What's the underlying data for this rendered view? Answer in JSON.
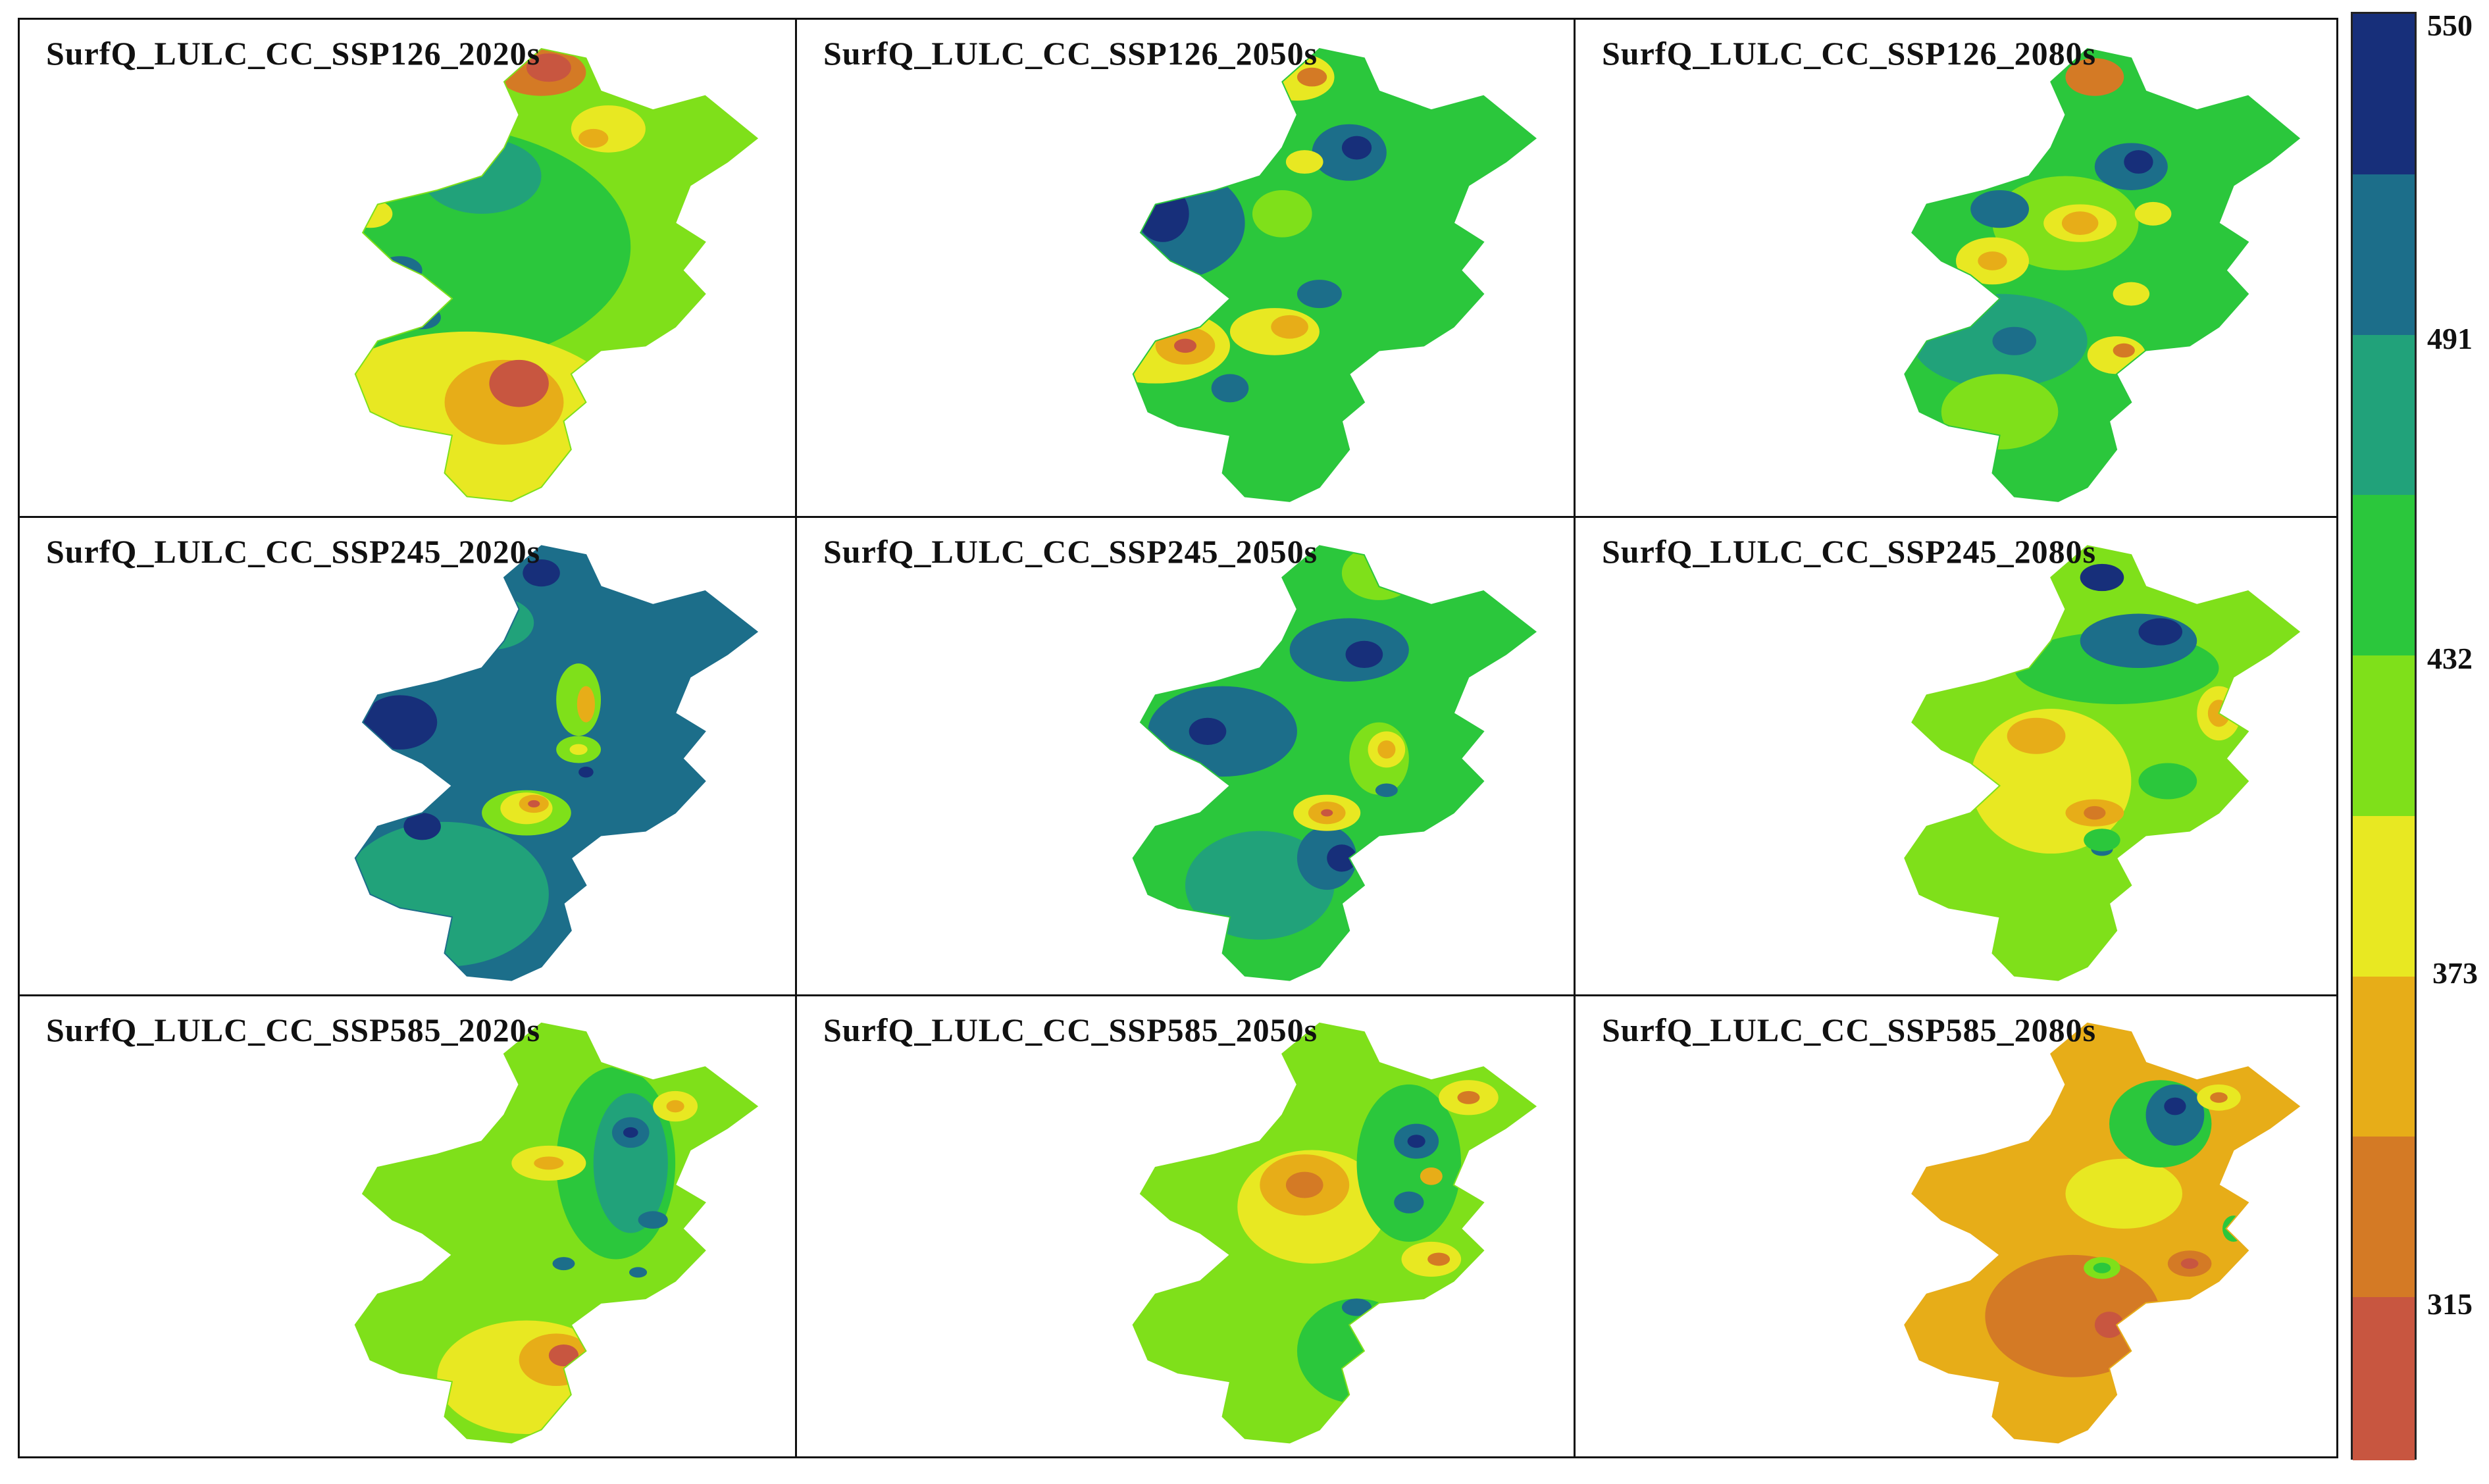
{
  "panels": [
    {
      "title": "SurfQ_LULC_CC_SSP126_2020s",
      "base": "#7fe01a",
      "zones": [
        [
          "#2bc73c",
          0.52,
          0.45,
          0.28,
          0.26
        ],
        [
          "#21a27a",
          0.6,
          0.3,
          0.08,
          0.08
        ],
        [
          "#e8e822",
          0.58,
          0.83,
          0.22,
          0.2
        ],
        [
          "#e7ad18",
          0.63,
          0.78,
          0.08,
          0.09
        ],
        [
          "#c85640",
          0.65,
          0.74,
          0.04,
          0.05
        ],
        [
          "#d47a25",
          0.68,
          0.08,
          0.06,
          0.05
        ],
        [
          "#c85640",
          0.69,
          0.07,
          0.03,
          0.03
        ],
        [
          "#e8e822",
          0.77,
          0.2,
          0.05,
          0.05
        ],
        [
          "#e7ad18",
          0.75,
          0.22,
          0.02,
          0.02
        ],
        [
          "#1c6e8a",
          0.49,
          0.5,
          0.03,
          0.03
        ],
        [
          "#1c6e8a",
          0.52,
          0.6,
          0.025,
          0.025
        ],
        [
          "#e8e822",
          0.45,
          0.38,
          0.03,
          0.03
        ]
      ]
    },
    {
      "title": "SurfQ_LULC_CC_SSP126_2050s",
      "base": "#2bc73c",
      "zones": [
        [
          "#1c6e8a",
          0.48,
          0.4,
          0.1,
          0.12
        ],
        [
          "#172f7a",
          0.47,
          0.38,
          0.035,
          0.06
        ],
        [
          "#e8e822",
          0.46,
          0.66,
          0.1,
          0.08
        ],
        [
          "#e7ad18",
          0.5,
          0.66,
          0.04,
          0.04
        ],
        [
          "#c85640",
          0.5,
          0.66,
          0.015,
          0.015
        ],
        [
          "#e8e822",
          0.62,
          0.63,
          0.06,
          0.05
        ],
        [
          "#e7ad18",
          0.64,
          0.62,
          0.025,
          0.025
        ],
        [
          "#e8e822",
          0.65,
          0.09,
          0.05,
          0.05
        ],
        [
          "#d47a25",
          0.67,
          0.09,
          0.02,
          0.02
        ],
        [
          "#1c6e8a",
          0.72,
          0.25,
          0.05,
          0.06
        ],
        [
          "#172f7a",
          0.73,
          0.24,
          0.02,
          0.025
        ],
        [
          "#7fe01a",
          0.63,
          0.38,
          0.04,
          0.05
        ],
        [
          "#e8e822",
          0.66,
          0.27,
          0.025,
          0.025
        ],
        [
          "#1c6e8a",
          0.56,
          0.75,
          0.025,
          0.03
        ],
        [
          "#1c6e8a",
          0.68,
          0.55,
          0.03,
          0.03
        ]
      ]
    },
    {
      "title": "SurfQ_LULC_CC_SSP126_2080s",
      "base": "#2bc73c",
      "zones": [
        [
          "#21a27a",
          0.56,
          0.65,
          0.12,
          0.1
        ],
        [
          "#1c6e8a",
          0.58,
          0.65,
          0.03,
          0.03
        ],
        [
          "#7fe01a",
          0.65,
          0.4,
          0.1,
          0.1
        ],
        [
          "#e8e822",
          0.67,
          0.4,
          0.05,
          0.04
        ],
        [
          "#e7ad18",
          0.67,
          0.4,
          0.025,
          0.025
        ],
        [
          "#e8e822",
          0.55,
          0.48,
          0.05,
          0.05
        ],
        [
          "#e7ad18",
          0.55,
          0.48,
          0.02,
          0.02
        ],
        [
          "#d47a25",
          0.69,
          0.09,
          0.04,
          0.04
        ],
        [
          "#1c6e8a",
          0.74,
          0.28,
          0.05,
          0.05
        ],
        [
          "#172f7a",
          0.75,
          0.27,
          0.02,
          0.025
        ],
        [
          "#1c6e8a",
          0.56,
          0.37,
          0.04,
          0.04
        ],
        [
          "#e8e822",
          0.72,
          0.68,
          0.04,
          0.04
        ],
        [
          "#d47a25",
          0.73,
          0.67,
          0.015,
          0.015
        ],
        [
          "#e8e822",
          0.77,
          0.38,
          0.025,
          0.025
        ],
        [
          "#e8e822",
          0.74,
          0.55,
          0.025,
          0.025
        ],
        [
          "#7fe01a",
          0.56,
          0.8,
          0.08,
          0.08
        ]
      ]
    },
    {
      "title": "SurfQ_LULC_CC_SSP245_2020s",
      "base": "#1c6e8a",
      "zones": [
        [
          "#21a27a",
          0.55,
          0.8,
          0.14,
          0.16
        ],
        [
          "#21a27a",
          0.61,
          0.2,
          0.06,
          0.06
        ],
        [
          "#172f7a",
          0.49,
          0.42,
          0.05,
          0.06
        ],
        [
          "#172f7a",
          0.52,
          0.65,
          0.025,
          0.03
        ],
        [
          "#172f7a",
          0.68,
          0.09,
          0.025,
          0.03
        ],
        [
          "#7fe01a",
          0.66,
          0.62,
          0.06,
          0.05
        ],
        [
          "#e8e822",
          0.66,
          0.61,
          0.035,
          0.035
        ],
        [
          "#e7ad18",
          0.67,
          0.6,
          0.02,
          0.02
        ],
        [
          "#c85640",
          0.67,
          0.6,
          0.008,
          0.008
        ],
        [
          "#7fe01a",
          0.73,
          0.37,
          0.03,
          0.08
        ],
        [
          "#e7ad18",
          0.74,
          0.38,
          0.012,
          0.04
        ],
        [
          "#7fe01a",
          0.73,
          0.48,
          0.03,
          0.03
        ],
        [
          "#e8e822",
          0.73,
          0.48,
          0.012,
          0.012
        ],
        [
          "#172f7a",
          0.74,
          0.53,
          0.01,
          0.012
        ]
      ]
    },
    {
      "title": "SurfQ_LULC_CC_SSP245_2050s",
      "base": "#2bc73c",
      "zones": [
        [
          "#1c6e8a",
          0.55,
          0.44,
          0.1,
          0.1
        ],
        [
          "#172f7a",
          0.53,
          0.44,
          0.025,
          0.03
        ],
        [
          "#1c6e8a",
          0.72,
          0.26,
          0.08,
          0.07
        ],
        [
          "#172f7a",
          0.74,
          0.27,
          0.025,
          0.03
        ],
        [
          "#21a27a",
          0.6,
          0.78,
          0.1,
          0.12
        ],
        [
          "#1c6e8a",
          0.69,
          0.72,
          0.04,
          0.07
        ],
        [
          "#172f7a",
          0.71,
          0.72,
          0.02,
          0.03
        ],
        [
          "#e8e822",
          0.69,
          0.62,
          0.045,
          0.04
        ],
        [
          "#e7ad18",
          0.69,
          0.62,
          0.025,
          0.025
        ],
        [
          "#c85640",
          0.69,
          0.62,
          0.008,
          0.008
        ],
        [
          "#7fe01a",
          0.76,
          0.5,
          0.04,
          0.08
        ],
        [
          "#e8e822",
          0.77,
          0.48,
          0.025,
          0.04
        ],
        [
          "#e7ad18",
          0.77,
          0.48,
          0.012,
          0.02
        ],
        [
          "#7fe01a",
          0.76,
          0.09,
          0.05,
          0.06
        ],
        [
          "#1c6e8a",
          0.77,
          0.57,
          0.015,
          0.015
        ]
      ]
    },
    {
      "title": "SurfQ_LULC_CC_SSP245_2080s",
      "base": "#7fe01a",
      "zones": [
        [
          "#e8e822",
          0.63,
          0.55,
          0.11,
          0.16
        ],
        [
          "#e7ad18",
          0.61,
          0.45,
          0.04,
          0.04
        ],
        [
          "#e7ad18",
          0.69,
          0.62,
          0.04,
          0.03
        ],
        [
          "#d47a25",
          0.69,
          0.62,
          0.015,
          0.015
        ],
        [
          "#2bc73c",
          0.72,
          0.3,
          0.14,
          0.08
        ],
        [
          "#1c6e8a",
          0.75,
          0.24,
          0.08,
          0.06
        ],
        [
          "#172f7a",
          0.78,
          0.22,
          0.03,
          0.03
        ],
        [
          "#172f7a",
          0.7,
          0.1,
          0.03,
          0.03
        ],
        [
          "#e8e822",
          0.86,
          0.4,
          0.03,
          0.06
        ],
        [
          "#e7ad18",
          0.86,
          0.4,
          0.015,
          0.03
        ],
        [
          "#2bc73c",
          0.79,
          0.55,
          0.04,
          0.04
        ],
        [
          "#1c6e8a",
          0.7,
          0.7,
          0.015,
          0.015
        ],
        [
          "#2bc73c",
          0.7,
          0.68,
          0.025,
          0.025
        ]
      ]
    },
    {
      "title": "SurfQ_LULC_CC_SSP585_2020s",
      "base": "#7fe01a",
      "zones": [
        [
          "#2bc73c",
          0.78,
          0.35,
          0.08,
          0.22
        ],
        [
          "#21a27a",
          0.8,
          0.35,
          0.05,
          0.16
        ],
        [
          "#1c6e8a",
          0.8,
          0.28,
          0.025,
          0.035
        ],
        [
          "#1c6e8a",
          0.83,
          0.48,
          0.02,
          0.02
        ],
        [
          "#172f7a",
          0.8,
          0.28,
          0.01,
          0.012
        ],
        [
          "#e8e822",
          0.86,
          0.22,
          0.03,
          0.035
        ],
        [
          "#e7ad18",
          0.86,
          0.22,
          0.012,
          0.014
        ],
        [
          "#e8e822",
          0.69,
          0.35,
          0.05,
          0.04
        ],
        [
          "#e7ad18",
          0.69,
          0.35,
          0.02,
          0.015
        ],
        [
          "#e8e822",
          0.66,
          0.84,
          0.12,
          0.13
        ],
        [
          "#e7ad18",
          0.7,
          0.8,
          0.05,
          0.06
        ],
        [
          "#c85640",
          0.71,
          0.79,
          0.02,
          0.025
        ],
        [
          "#1c6e8a",
          0.71,
          0.58,
          0.015,
          0.015
        ],
        [
          "#1c6e8a",
          0.81,
          0.6,
          0.012,
          0.012
        ]
      ]
    },
    {
      "title": "SurfQ_LULC_CC_SSP585_2050s",
      "base": "#7fe01a",
      "zones": [
        [
          "#e8e822",
          0.67,
          0.45,
          0.1,
          0.13
        ],
        [
          "#e7ad18",
          0.66,
          0.4,
          0.06,
          0.07
        ],
        [
          "#d47a25",
          0.66,
          0.4,
          0.025,
          0.03
        ],
        [
          "#2bc73c",
          0.73,
          0.78,
          0.08,
          0.12
        ],
        [
          "#2bc73c",
          0.8,
          0.35,
          0.07,
          0.18
        ],
        [
          "#1c6e8a",
          0.81,
          0.3,
          0.03,
          0.04
        ],
        [
          "#172f7a",
          0.81,
          0.3,
          0.012,
          0.015
        ],
        [
          "#1c6e8a",
          0.8,
          0.44,
          0.02,
          0.025
        ],
        [
          "#e8e822",
          0.83,
          0.57,
          0.04,
          0.04
        ],
        [
          "#d47a25",
          0.84,
          0.57,
          0.015,
          0.015
        ],
        [
          "#e8e822",
          0.88,
          0.2,
          0.04,
          0.04
        ],
        [
          "#d47a25",
          0.88,
          0.2,
          0.015,
          0.015
        ],
        [
          "#1c6e8a",
          0.73,
          0.68,
          0.02,
          0.02
        ],
        [
          "#e7ad18",
          0.83,
          0.38,
          0.015,
          0.02
        ]
      ]
    },
    {
      "title": "SurfQ_LULC_CC_SSP585_2080s",
      "base": "#e7ad18",
      "zones": [
        [
          "#d47a25",
          0.66,
          0.7,
          0.12,
          0.14
        ],
        [
          "#c85640",
          0.71,
          0.72,
          0.02,
          0.03
        ],
        [
          "#e8e822",
          0.73,
          0.42,
          0.08,
          0.08
        ],
        [
          "#2bc73c",
          0.78,
          0.26,
          0.07,
          0.1
        ],
        [
          "#1c6e8a",
          0.8,
          0.24,
          0.04,
          0.07
        ],
        [
          "#172f7a",
          0.8,
          0.22,
          0.015,
          0.02
        ],
        [
          "#172f7a",
          0.78,
          0.08,
          0.03,
          0.03
        ],
        [
          "#e8e822",
          0.86,
          0.2,
          0.03,
          0.03
        ],
        [
          "#d47a25",
          0.86,
          0.2,
          0.012,
          0.012
        ],
        [
          "#7fe01a",
          0.7,
          0.59,
          0.025,
          0.025
        ],
        [
          "#2bc73c",
          0.7,
          0.59,
          0.012,
          0.012
        ],
        [
          "#d47a25",
          0.82,
          0.58,
          0.03,
          0.03
        ],
        [
          "#c85640",
          0.82,
          0.58,
          0.012,
          0.012
        ],
        [
          "#2bc73c",
          0.88,
          0.5,
          0.015,
          0.03
        ]
      ]
    }
  ],
  "legend": {
    "colors": [
      "#172f7a",
      "#1c6e8a",
      "#21a27a",
      "#2bc73c",
      "#7fe01a",
      "#e8e822",
      "#e7ad18",
      "#d47a25",
      "#c85640"
    ],
    "labels": [
      "550",
      "491",
      "432",
      "373",
      "315"
    ]
  }
}
